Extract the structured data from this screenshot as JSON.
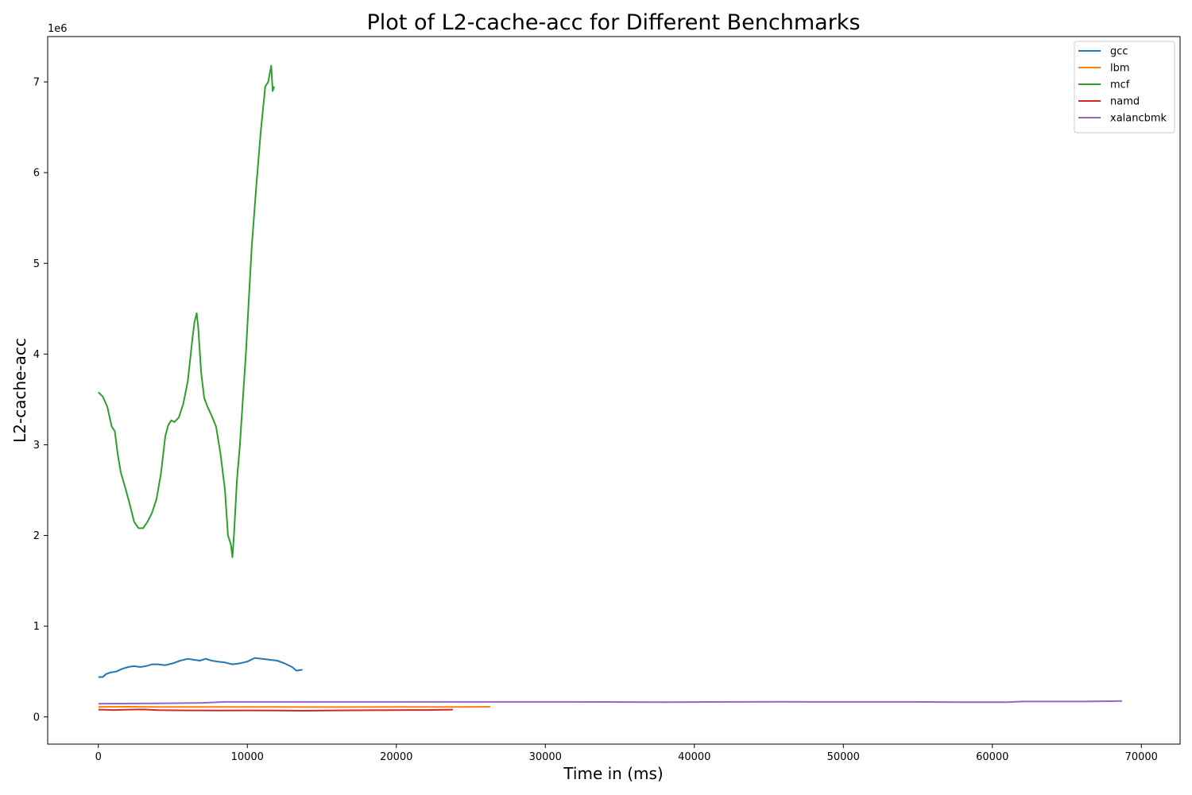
{
  "chart_data": {
    "type": "line",
    "title": "Plot of L2-cache-acc for Different Benchmarks",
    "xlabel": "Time in (ms)",
    "ylabel": "L2-cache-acc",
    "y_offset_label": "1e6",
    "xlim": [
      -3400,
      72600
    ],
    "ylim": [
      -300000,
      7500000
    ],
    "x_ticks": [
      0,
      10000,
      20000,
      30000,
      40000,
      50000,
      60000,
      70000
    ],
    "x_tick_labels": [
      "0",
      "10000",
      "20000",
      "30000",
      "40000",
      "50000",
      "60000",
      "70000"
    ],
    "y_ticks": [
      0,
      1000000,
      2000000,
      3000000,
      4000000,
      5000000,
      6000000,
      7000000
    ],
    "y_tick_labels": [
      "0",
      "1",
      "2",
      "3",
      "4",
      "5",
      "6",
      "7"
    ],
    "grid": false,
    "legend_position": "top-right",
    "series": [
      {
        "name": "gcc",
        "color": "#1f77b4",
        "x": [
          0,
          300,
          500,
          800,
          1200,
          1600,
          2000,
          2400,
          2800,
          3200,
          3600,
          4000,
          4500,
          5000,
          5500,
          6000,
          6400,
          6800,
          7200,
          7600,
          8000,
          8500,
          9000,
          9500,
          10000,
          10500,
          11000,
          11500,
          12000,
          12500,
          13000,
          13300,
          13700
        ],
        "y": [
          440000,
          440000,
          470000,
          490000,
          500000,
          530000,
          550000,
          560000,
          550000,
          560000,
          580000,
          580000,
          570000,
          590000,
          620000,
          640000,
          630000,
          620000,
          640000,
          620000,
          610000,
          600000,
          580000,
          590000,
          610000,
          650000,
          640000,
          630000,
          620000,
          590000,
          550000,
          510000,
          520000
        ]
      },
      {
        "name": "lbm",
        "color": "#ff7f0e",
        "x": [
          0,
          2000,
          4000,
          8000,
          12000,
          16000,
          20000,
          24000,
          26300
        ],
        "y": [
          110000,
          112000,
          110000,
          110000,
          109000,
          108000,
          109000,
          110000,
          112000
        ]
      },
      {
        "name": "mcf",
        "color": "#2ca02c",
        "x": [
          0,
          300,
          600,
          900,
          1100,
          1300,
          1500,
          1800,
          2100,
          2400,
          2700,
          3000,
          3300,
          3600,
          3900,
          4200,
          4500,
          4700,
          4900,
          5100,
          5400,
          5700,
          6000,
          6300,
          6450,
          6600,
          6700,
          6900,
          7100,
          7300,
          7600,
          7900,
          8200,
          8500,
          8700,
          8900,
          9000,
          9100,
          9300,
          9500,
          9700,
          9900,
          10100,
          10300,
          10600,
          10900,
          11200,
          11400,
          11600,
          11700,
          11800
        ],
        "y": [
          3580000,
          3530000,
          3420000,
          3200000,
          3150000,
          2900000,
          2700000,
          2530000,
          2350000,
          2150000,
          2080000,
          2080000,
          2150000,
          2250000,
          2400000,
          2680000,
          3100000,
          3220000,
          3270000,
          3250000,
          3300000,
          3450000,
          3700000,
          4150000,
          4350000,
          4450000,
          4300000,
          3800000,
          3520000,
          3430000,
          3320000,
          3200000,
          2900000,
          2500000,
          2000000,
          1900000,
          1760000,
          2000000,
          2600000,
          3000000,
          3500000,
          4000000,
          4600000,
          5200000,
          5850000,
          6450000,
          6950000,
          7000000,
          7180000,
          6900000,
          6950000
        ]
      },
      {
        "name": "namd",
        "color": "#d62728",
        "x": [
          0,
          1000,
          2000,
          3000,
          4000,
          6000,
          8000,
          10000,
          12000,
          14000,
          16000,
          18000,
          20000,
          22000,
          23800
        ],
        "y": [
          80000,
          76000,
          80000,
          82000,
          74000,
          72000,
          71000,
          72000,
          70000,
          68000,
          72000,
          73000,
          75000,
          76000,
          80000
        ]
      },
      {
        "name": "xalancbmk",
        "color": "#9467bd",
        "x": [
          0,
          4000,
          7000,
          8500,
          12000,
          20000,
          30000,
          38000,
          46000,
          54000,
          58000,
          61000,
          62000,
          66000,
          68700
        ],
        "y": [
          145000,
          150000,
          155000,
          165000,
          165000,
          165000,
          165000,
          163000,
          166000,
          165000,
          163000,
          162000,
          170000,
          170000,
          175000
        ]
      }
    ]
  }
}
